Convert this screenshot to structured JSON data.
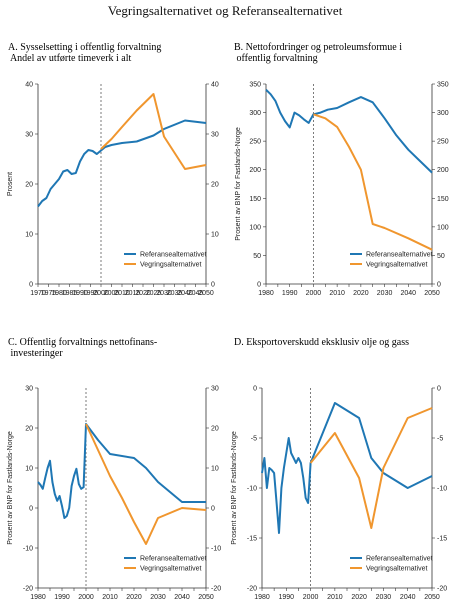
{
  "page": {
    "title": "Vegringsalternativet og Referansealternativet"
  },
  "colors": {
    "referanse": "#1f77b4",
    "vegring": "#f0962e",
    "axis": "#333333",
    "guide": "#444444"
  },
  "legend": {
    "referanse": "Referansealternativet",
    "vegring": "Vegringsalternativet"
  },
  "chart_data": [
    {
      "type": "line",
      "title": "A.  Sysselsetting i offentlig forvaltning\n     Andel av utførte timeverk i alt",
      "ylabel": "Prosent",
      "xlim": [
        1970,
        2050
      ],
      "ylim": [
        0,
        40
      ],
      "xticks": [
        1970,
        1975,
        1980,
        1985,
        1990,
        1995,
        2000,
        2005,
        2010,
        2015,
        2020,
        2025,
        2030,
        2035,
        2040,
        2045,
        2050
      ],
      "yticks": [
        0,
        10,
        20,
        30,
        40
      ],
      "divider_x": 2000,
      "legend_position": "lower-right",
      "series": [
        {
          "name": "Referansealternativet",
          "color": "#1f77b4",
          "x": [
            1970,
            1972,
            1974,
            1976,
            1978,
            1980,
            1982,
            1984,
            1986,
            1988,
            1990,
            1992,
            1994,
            1996,
            1998,
            2000,
            2002,
            2005,
            2010,
            2017,
            2025,
            2030,
            2040,
            2050
          ],
          "y": [
            15.5,
            16.6,
            17.2,
            19.0,
            20.0,
            21.0,
            22.5,
            22.8,
            22.0,
            22.2,
            24.5,
            26.0,
            26.8,
            26.6,
            26.0,
            26.7,
            27.4,
            27.8,
            28.2,
            28.5,
            29.7,
            31.0,
            32.7,
            32.2
          ]
        },
        {
          "name": "Vegringsalternativet",
          "color": "#f0962e",
          "x": [
            2000,
            2005,
            2010,
            2017,
            2025,
            2030,
            2040,
            2050
          ],
          "y": [
            27.0,
            29.0,
            31.4,
            34.7,
            38.0,
            29.5,
            23.0,
            23.8
          ]
        }
      ]
    },
    {
      "type": "line",
      "title": "B.  Nettofordringer og petroleumsformue i\n     offentlig forvaltning",
      "ylabel": "Prosent av BNP for Fastlands-Norge",
      "xlim": [
        1980,
        2050
      ],
      "ylim": [
        0,
        350
      ],
      "xticks": [
        1980,
        1985,
        1990,
        1995,
        2000,
        2005,
        2010,
        2015,
        2020,
        2025,
        2030,
        2035,
        2040,
        2045,
        2050
      ],
      "yticks": [
        0,
        50,
        100,
        150,
        200,
        250,
        300,
        350
      ],
      "divider_x": 2000,
      "legend_position": "lower-right",
      "series": [
        {
          "name": "Referansealternativet",
          "color": "#1f77b4",
          "x": [
            1980,
            1982,
            1984,
            1986,
            1988,
            1990,
            1992,
            1994,
            1996,
            1998,
            2000,
            2003,
            2006,
            2010,
            2015,
            2020,
            2025,
            2030,
            2035,
            2040,
            2045,
            2050
          ],
          "y": [
            340,
            332,
            320,
            300,
            285,
            274,
            300,
            295,
            288,
            282,
            297,
            300,
            305,
            308,
            318,
            327,
            318,
            290,
            260,
            235,
            215,
            195
          ]
        },
        {
          "name": "Vegringsalternativet",
          "color": "#f0962e",
          "x": [
            2000,
            2005,
            2010,
            2015,
            2020,
            2025,
            2030,
            2040,
            2050
          ],
          "y": [
            297,
            290,
            275,
            240,
            200,
            105,
            98,
            80,
            60
          ]
        }
      ]
    },
    {
      "type": "line",
      "title": "C.  Offentlig forvaltnings nettofinans-\n     investeringer",
      "ylabel": "Prosent av BNP for Fastlands-Norge",
      "xlim": [
        1980,
        2050
      ],
      "ylim": [
        -20,
        30
      ],
      "xticks": [
        1980,
        1985,
        1990,
        1995,
        2000,
        2005,
        2010,
        2015,
        2020,
        2025,
        2030,
        2035,
        2040,
        2045,
        2050
      ],
      "yticks": [
        -20,
        -10,
        0,
        10,
        20,
        30
      ],
      "divider_x": 2000,
      "legend_position": "lower-right",
      "series": [
        {
          "name": "Referansealternativet",
          "color": "#1f77b4",
          "x": [
            1980,
            1981,
            1982,
            1983,
            1984,
            1985,
            1986,
            1987,
            1988,
            1989,
            1990,
            1991,
            1992,
            1993,
            1994,
            1995,
            1996,
            1997,
            1998,
            1999,
            2000,
            2005,
            2010,
            2020,
            2025,
            2030,
            2040,
            2050
          ],
          "y": [
            6.5,
            5.8,
            4.8,
            7.5,
            10.0,
            11.8,
            6.5,
            3.5,
            1.8,
            3.0,
            0.5,
            -2.5,
            -2.0,
            0.0,
            5.5,
            8.0,
            9.8,
            6.0,
            4.8,
            5.2,
            21.0,
            17.0,
            13.5,
            12.5,
            10.0,
            6.5,
            1.5,
            1.5
          ]
        },
        {
          "name": "Vegringsalternativet",
          "color": "#f0962e",
          "x": [
            2000,
            2005,
            2010,
            2015,
            2020,
            2025,
            2030,
            2040,
            2050
          ],
          "y": [
            21.0,
            14.5,
            8.0,
            2.5,
            -3.5,
            -9.0,
            -2.5,
            0.0,
            -0.5
          ]
        }
      ]
    },
    {
      "type": "line",
      "title": "D.  Eksportoverskudd eksklusiv olje og gass",
      "ylabel": "Prosent av BNP for Fastlands-Norge",
      "xlim": [
        1980,
        2050
      ],
      "ylim": [
        -20,
        0
      ],
      "xticks": [
        1980,
        1985,
        1990,
        1995,
        2000,
        2005,
        2010,
        2015,
        2020,
        2025,
        2030,
        2035,
        2040,
        2045,
        2050
      ],
      "yticks": [
        -20,
        -15,
        -10,
        -5,
        0
      ],
      "divider_x": 2000,
      "legend_position": "lower-right",
      "series": [
        {
          "name": "Referansealternativet",
          "color": "#1f77b4",
          "x": [
            1980,
            1981,
            1982,
            1983,
            1984,
            1985,
            1986,
            1987,
            1988,
            1989,
            1990,
            1991,
            1992,
            1993,
            1994,
            1995,
            1996,
            1997,
            1998,
            1999,
            2000,
            2010,
            2020,
            2025,
            2030,
            2040,
            2050
          ],
          "y": [
            -8.5,
            -7.0,
            -10.0,
            -8.0,
            -8.2,
            -8.5,
            -11.5,
            -14.5,
            -10.0,
            -8.0,
            -6.5,
            -5.0,
            -6.5,
            -7.0,
            -7.5,
            -7.0,
            -7.5,
            -9.0,
            -11.0,
            -11.5,
            -7.5,
            -1.5,
            -3.0,
            -7.0,
            -8.5,
            -10.0,
            -8.8
          ]
        },
        {
          "name": "Vegringsalternativet",
          "color": "#f0962e",
          "x": [
            2000,
            2010,
            2020,
            2025,
            2030,
            2040,
            2050
          ],
          "y": [
            -7.5,
            -4.5,
            -9.0,
            -14.0,
            -8.0,
            -3.0,
            -2.0
          ]
        }
      ]
    }
  ]
}
